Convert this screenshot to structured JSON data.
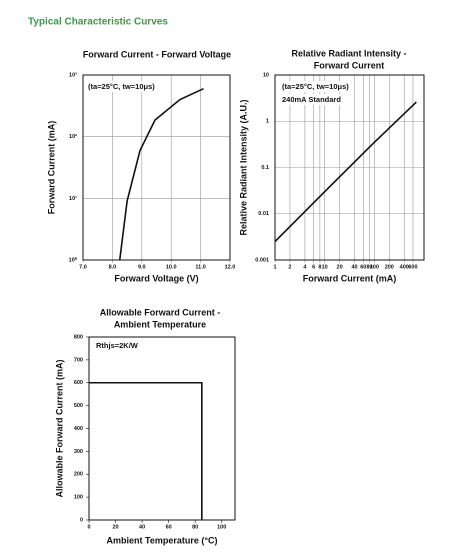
{
  "page_title": "Typical Characteristic Curves",
  "chart_data": [
    {
      "type": "line",
      "title": [
        "Forward Current - Forward Voltage"
      ],
      "annotations": [
        "(ta=25°C, tw=10μs)"
      ],
      "x_label": "Forward Voltage (V)",
      "y_label": "Forward Current (mA)",
      "ylog": true,
      "xlog": false,
      "grid": true,
      "xlim": [
        7,
        12
      ],
      "xticks": [
        {
          "value": 7,
          "label": "7.0"
        },
        {
          "value": 8,
          "label": "8.0"
        },
        {
          "value": 9,
          "label": "9.0"
        },
        {
          "value": 10,
          "label": "10.0"
        },
        {
          "value": 11,
          "label": "11.0"
        },
        {
          "value": 12,
          "label": "12.0"
        }
      ],
      "ylim": [
        1,
        1000
      ],
      "yticks": [
        {
          "value": 1,
          "label": "10⁰"
        },
        {
          "value": 10,
          "label": "10¹"
        },
        {
          "value": 100,
          "label": "10²"
        },
        {
          "value": 1000,
          "label": "10³"
        }
      ],
      "series": [
        {
          "color": "#111111",
          "x": [
            8.25,
            8.5,
            8.94,
            9.45,
            10.3,
            11.1
          ],
          "values": [
            1,
            9,
            60,
            186,
            400,
            600
          ]
        }
      ]
    },
    {
      "type": "line",
      "title": [
        "Relative Radiant Intensity -",
        "Forward Current"
      ],
      "annotations": [
        "(ta=25°C, tw=10μs)",
        "240mA Standard"
      ],
      "x_label": "Forward Current (mA)",
      "y_label": "Relative Radiant Intensity (A.U.)",
      "ylog": true,
      "xlog": true,
      "grid": true,
      "xlim": [
        1,
        1000
      ],
      "xticks": [
        1,
        2,
        4,
        6,
        8,
        10,
        20,
        40,
        60,
        80,
        100,
        200,
        400,
        600
      ],
      "ylim": [
        0.001,
        10
      ],
      "yticks": [
        0.001,
        0.01,
        0.1,
        1,
        10
      ],
      "series": [
        {
          "color": "#111111",
          "x": [
            1,
            10,
            100,
            700
          ],
          "values": [
            0.0025,
            0.03,
            0.35,
            2.6
          ]
        }
      ]
    },
    {
      "type": "line",
      "title": [
        "Allowable Forward Current -",
        "Ambient Temperature"
      ],
      "annotations": [
        "Rthjs=2K/W"
      ],
      "x_label": "Ambient Temperature (°C)",
      "y_label": "Allowable Forward Current (mA)",
      "ylog": false,
      "xlog": false,
      "grid": false,
      "xlim": [
        0,
        110
      ],
      "xticks": [
        0,
        20,
        40,
        60,
        80,
        100
      ],
      "ylim": [
        0,
        800
      ],
      "yticks": [
        0,
        100,
        200,
        300,
        400,
        500,
        600,
        700,
        800
      ],
      "series": [
        {
          "color": "#111111",
          "x": [
            0,
            85,
            85
          ],
          "values": [
            600,
            600,
            0
          ]
        }
      ]
    }
  ]
}
